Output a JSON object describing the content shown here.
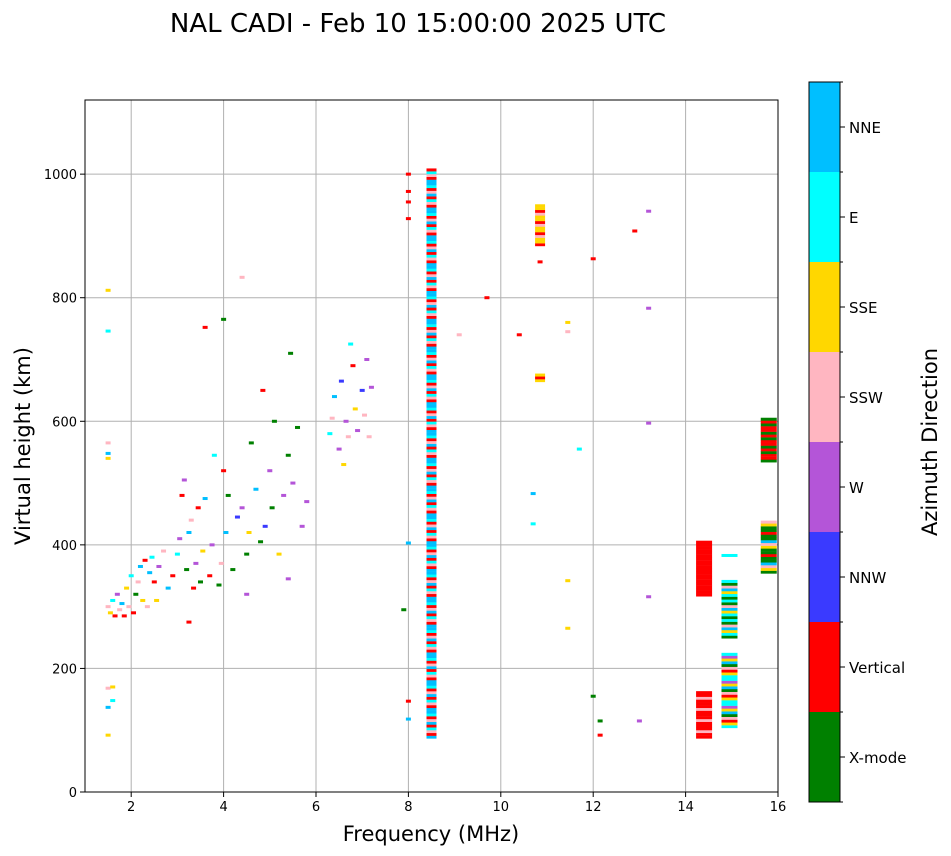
{
  "chart_data": {
    "type": "scatter",
    "title": "NAL CADI - Feb 10 15:00:00 2025 UTC",
    "xlabel": "Frequency (MHz)",
    "ylabel": "Virtual height (km)",
    "xlim": [
      1,
      16
    ],
    "ylim": [
      0,
      1120
    ],
    "xticks": [
      2,
      4,
      6,
      8,
      10,
      12,
      14,
      16
    ],
    "yticks": [
      0,
      200,
      400,
      600,
      800,
      1000
    ],
    "grid": true,
    "colorbar": {
      "label": "Azimuth Direction",
      "categories": [
        {
          "name": "X-mode",
          "color": "#008000"
        },
        {
          "name": "Vertical",
          "color": "#ff0000"
        },
        {
          "name": "NNW",
          "color": "#3a3aff"
        },
        {
          "name": "W",
          "color": "#b455d8"
        },
        {
          "name": "SSW",
          "color": "#ffb6c1"
        },
        {
          "name": "SSE",
          "color": "#ffd700"
        },
        {
          "name": "E",
          "color": "#00ffff"
        },
        {
          "name": "NNE",
          "color": "#00bfff"
        }
      ]
    },
    "points": [
      {
        "f": 1.5,
        "h": 812,
        "c": "SSE"
      },
      {
        "f": 1.5,
        "h": 746,
        "c": "E"
      },
      {
        "f": 1.5,
        "h": 565,
        "c": "SSW"
      },
      {
        "f": 1.5,
        "h": 548,
        "c": "NNE"
      },
      {
        "f": 1.5,
        "h": 540,
        "c": "SSE"
      },
      {
        "f": 1.5,
        "h": 168,
        "c": "SSW"
      },
      {
        "f": 1.6,
        "h": 170,
        "c": "SSE"
      },
      {
        "f": 1.6,
        "h": 148,
        "c": "E"
      },
      {
        "f": 1.5,
        "h": 137,
        "c": "NNE"
      },
      {
        "f": 1.5,
        "h": 92,
        "c": "SSE"
      },
      {
        "f": 1.5,
        "h": 300,
        "c": "SSW"
      },
      {
        "f": 1.55,
        "h": 290,
        "c": "SSE"
      },
      {
        "f": 1.6,
        "h": 310,
        "c": "E"
      },
      {
        "f": 1.65,
        "h": 285,
        "c": "Vertical"
      },
      {
        "f": 1.7,
        "h": 320,
        "c": "W"
      },
      {
        "f": 1.75,
        "h": 295,
        "c": "SSW"
      },
      {
        "f": 1.8,
        "h": 305,
        "c": "NNE"
      },
      {
        "f": 1.85,
        "h": 285,
        "c": "Vertical"
      },
      {
        "f": 1.9,
        "h": 330,
        "c": "SSE"
      },
      {
        "f": 1.95,
        "h": 300,
        "c": "SSW"
      },
      {
        "f": 2.0,
        "h": 350,
        "c": "E"
      },
      {
        "f": 2.05,
        "h": 290,
        "c": "Vertical"
      },
      {
        "f": 2.1,
        "h": 320,
        "c": "X-mode"
      },
      {
        "f": 2.15,
        "h": 340,
        "c": "SSW"
      },
      {
        "f": 2.2,
        "h": 365,
        "c": "NNE"
      },
      {
        "f": 2.25,
        "h": 310,
        "c": "SSE"
      },
      {
        "f": 2.3,
        "h": 375,
        "c": "Vertical"
      },
      {
        "f": 2.35,
        "h": 300,
        "c": "SSW"
      },
      {
        "f": 2.4,
        "h": 355,
        "c": "NNE"
      },
      {
        "f": 2.45,
        "h": 380,
        "c": "E"
      },
      {
        "f": 2.5,
        "h": 340,
        "c": "Vertical"
      },
      {
        "f": 2.55,
        "h": 310,
        "c": "SSE"
      },
      {
        "f": 2.6,
        "h": 365,
        "c": "W"
      },
      {
        "f": 2.7,
        "h": 390,
        "c": "SSW"
      },
      {
        "f": 2.8,
        "h": 330,
        "c": "NNE"
      },
      {
        "f": 2.9,
        "h": 350,
        "c": "Vertical"
      },
      {
        "f": 3.0,
        "h": 385,
        "c": "E"
      },
      {
        "f": 3.05,
        "h": 410,
        "c": "W"
      },
      {
        "f": 3.1,
        "h": 480,
        "c": "Vertical"
      },
      {
        "f": 3.15,
        "h": 505,
        "c": "W"
      },
      {
        "f": 3.2,
        "h": 360,
        "c": "X-mode"
      },
      {
        "f": 3.25,
        "h": 420,
        "c": "NNE"
      },
      {
        "f": 3.3,
        "h": 440,
        "c": "SSW"
      },
      {
        "f": 3.35,
        "h": 330,
        "c": "Vertical"
      },
      {
        "f": 3.4,
        "h": 370,
        "c": "W"
      },
      {
        "f": 3.45,
        "h": 460,
        "c": "Vertical"
      },
      {
        "f": 3.5,
        "h": 340,
        "c": "X-mode"
      },
      {
        "f": 3.55,
        "h": 390,
        "c": "SSE"
      },
      {
        "f": 3.6,
        "h": 475,
        "c": "NNE"
      },
      {
        "f": 3.7,
        "h": 350,
        "c": "Vertical"
      },
      {
        "f": 3.75,
        "h": 400,
        "c": "W"
      },
      {
        "f": 3.8,
        "h": 545,
        "c": "E"
      },
      {
        "f": 3.9,
        "h": 335,
        "c": "X-mode"
      },
      {
        "f": 3.95,
        "h": 370,
        "c": "SSW"
      },
      {
        "f": 4.0,
        "h": 520,
        "c": "Vertical"
      },
      {
        "f": 4.05,
        "h": 420,
        "c": "NNE"
      },
      {
        "f": 4.1,
        "h": 480,
        "c": "X-mode"
      },
      {
        "f": 4.2,
        "h": 360,
        "c": "X-mode"
      },
      {
        "f": 4.3,
        "h": 445,
        "c": "NNW"
      },
      {
        "f": 4.4,
        "h": 460,
        "c": "W"
      },
      {
        "f": 4.5,
        "h": 385,
        "c": "X-mode"
      },
      {
        "f": 4.55,
        "h": 420,
        "c": "SSE"
      },
      {
        "f": 4.6,
        "h": 565,
        "c": "X-mode"
      },
      {
        "f": 4.7,
        "h": 490,
        "c": "NNE"
      },
      {
        "f": 4.8,
        "h": 405,
        "c": "X-mode"
      },
      {
        "f": 4.85,
        "h": 650,
        "c": "Vertical"
      },
      {
        "f": 4.9,
        "h": 430,
        "c": "NNW"
      },
      {
        "f": 5.0,
        "h": 520,
        "c": "W"
      },
      {
        "f": 5.05,
        "h": 460,
        "c": "X-mode"
      },
      {
        "f": 5.1,
        "h": 600,
        "c": "X-mode"
      },
      {
        "f": 5.2,
        "h": 385,
        "c": "SSE"
      },
      {
        "f": 5.3,
        "h": 480,
        "c": "W"
      },
      {
        "f": 5.4,
        "h": 545,
        "c": "X-mode"
      },
      {
        "f": 5.45,
        "h": 710,
        "c": "X-mode"
      },
      {
        "f": 5.5,
        "h": 500,
        "c": "W"
      },
      {
        "f": 5.6,
        "h": 590,
        "c": "X-mode"
      },
      {
        "f": 5.7,
        "h": 430,
        "c": "W"
      },
      {
        "f": 5.8,
        "h": 470,
        "c": "W"
      },
      {
        "f": 5.4,
        "h": 345,
        "c": "W"
      },
      {
        "f": 4.5,
        "h": 320,
        "c": "W"
      },
      {
        "f": 4.4,
        "h": 833,
        "c": "SSW"
      },
      {
        "f": 3.6,
        "h": 752,
        "c": "Vertical"
      },
      {
        "f": 4.0,
        "h": 765,
        "c": "X-mode"
      },
      {
        "f": 3.25,
        "h": 275,
        "c": "Vertical"
      },
      {
        "f": 6.3,
        "h": 580,
        "c": "E"
      },
      {
        "f": 6.35,
        "h": 605,
        "c": "SSW"
      },
      {
        "f": 6.4,
        "h": 640,
        "c": "NNE"
      },
      {
        "f": 6.5,
        "h": 555,
        "c": "W"
      },
      {
        "f": 6.55,
        "h": 665,
        "c": "NNW"
      },
      {
        "f": 6.6,
        "h": 530,
        "c": "SSE"
      },
      {
        "f": 6.65,
        "h": 600,
        "c": "W"
      },
      {
        "f": 6.7,
        "h": 575,
        "c": "SSW"
      },
      {
        "f": 6.75,
        "h": 725,
        "c": "E"
      },
      {
        "f": 6.8,
        "h": 690,
        "c": "Vertical"
      },
      {
        "f": 6.85,
        "h": 620,
        "c": "SSE"
      },
      {
        "f": 6.9,
        "h": 585,
        "c": "W"
      },
      {
        "f": 7.0,
        "h": 650,
        "c": "NNW"
      },
      {
        "f": 7.05,
        "h": 610,
        "c": "SSW"
      },
      {
        "f": 7.1,
        "h": 700,
        "c": "W"
      },
      {
        "f": 7.15,
        "h": 575,
        "c": "SSW"
      },
      {
        "f": 7.2,
        "h": 655,
        "c": "W"
      },
      {
        "f": 7.9,
        "h": 295,
        "c": "X-mode"
      },
      {
        "f": 8.0,
        "h": 1000,
        "c": "Vertical"
      },
      {
        "f": 8.0,
        "h": 972,
        "c": "Vertical"
      },
      {
        "f": 8.0,
        "h": 955,
        "c": "Vertical"
      },
      {
        "f": 8.0,
        "h": 928,
        "c": "Vertical"
      },
      {
        "f": 8.0,
        "h": 403,
        "c": "NNE"
      },
      {
        "f": 8.0,
        "h": 147,
        "c": "Vertical"
      },
      {
        "f": 8.0,
        "h": 118,
        "c": "NNE"
      },
      {
        "f": 9.1,
        "h": 740,
        "c": "SSW"
      },
      {
        "f": 9.7,
        "h": 800,
        "c": "Vertical"
      },
      {
        "f": 10.4,
        "h": 740,
        "c": "Vertical"
      },
      {
        "f": 10.7,
        "h": 483,
        "c": "NNE"
      },
      {
        "f": 10.7,
        "h": 434,
        "c": "E"
      },
      {
        "f": 10.8,
        "h": 930,
        "c": "SSW"
      },
      {
        "f": 10.85,
        "h": 858,
        "c": "Vertical"
      },
      {
        "f": 11.45,
        "h": 760,
        "c": "SSE"
      },
      {
        "f": 11.45,
        "h": 745,
        "c": "SSW"
      },
      {
        "f": 11.45,
        "h": 342,
        "c": "SSE"
      },
      {
        "f": 11.45,
        "h": 265,
        "c": "SSE"
      },
      {
        "f": 11.7,
        "h": 555,
        "c": "E"
      },
      {
        "f": 12.0,
        "h": 863,
        "c": "Vertical"
      },
      {
        "f": 12.0,
        "h": 155,
        "c": "X-mode"
      },
      {
        "f": 12.15,
        "h": 115,
        "c": "X-mode"
      },
      {
        "f": 12.15,
        "h": 92,
        "c": "Vertical"
      },
      {
        "f": 12.9,
        "h": 908,
        "c": "Vertical"
      },
      {
        "f": 13.0,
        "h": 115,
        "c": "W"
      },
      {
        "f": 13.2,
        "h": 940,
        "c": "W"
      },
      {
        "f": 13.2,
        "h": 783,
        "c": "W"
      },
      {
        "f": 13.2,
        "h": 597,
        "c": "W"
      },
      {
        "f": 13.2,
        "h": 316,
        "c": "W"
      }
    ],
    "columns": [
      {
        "f": 8.5,
        "h0": 88,
        "h1": 1010,
        "pattern": [
          "NNE",
          "Vertical",
          "SSW",
          "E",
          "Vertical",
          "NNE",
          "SSW",
          "Vertical",
          "E",
          "NNE"
        ]
      },
      {
        "f": 10.85,
        "h0": 885,
        "h1": 950,
        "pattern": [
          "Vertical",
          "SSE",
          "SSE",
          "SSW"
        ]
      },
      {
        "f": 10.85,
        "h0": 665,
        "h1": 675,
        "pattern": [
          "SSE",
          "Vertical"
        ]
      },
      {
        "f": 14.4,
        "h0": 318,
        "h1": 405,
        "pattern": [
          "Vertical"
        ]
      },
      {
        "f": 14.4,
        "h0": 88,
        "h1": 162,
        "pattern": [
          "Vertical",
          "Vertical",
          "SSW",
          "Vertical"
        ]
      },
      {
        "f": 14.95,
        "h0": 250,
        "h1": 340,
        "pattern": [
          "X-mode",
          "E",
          "SSE",
          "NNE",
          "SSW",
          "X-mode",
          "E"
        ]
      },
      {
        "f": 14.95,
        "h0": 105,
        "h1": 225,
        "pattern": [
          "E",
          "SSE",
          "Vertical",
          "SSW",
          "X-mode",
          "NNE",
          "SSE",
          "W",
          "E"
        ]
      },
      {
        "f": 14.95,
        "h0": 382,
        "h1": 386,
        "pattern": [
          "E"
        ]
      },
      {
        "f": 15.8,
        "h0": 535,
        "h1": 605,
        "pattern": [
          "X-mode",
          "Vertical",
          "Vertical",
          "X-mode",
          "Vertical"
        ]
      },
      {
        "f": 15.8,
        "h0": 355,
        "h1": 440,
        "pattern": [
          "X-mode",
          "SSE",
          "SSW",
          "NNE",
          "X-mode",
          "X-mode",
          "Vertical",
          "X-mode"
        ]
      }
    ]
  }
}
